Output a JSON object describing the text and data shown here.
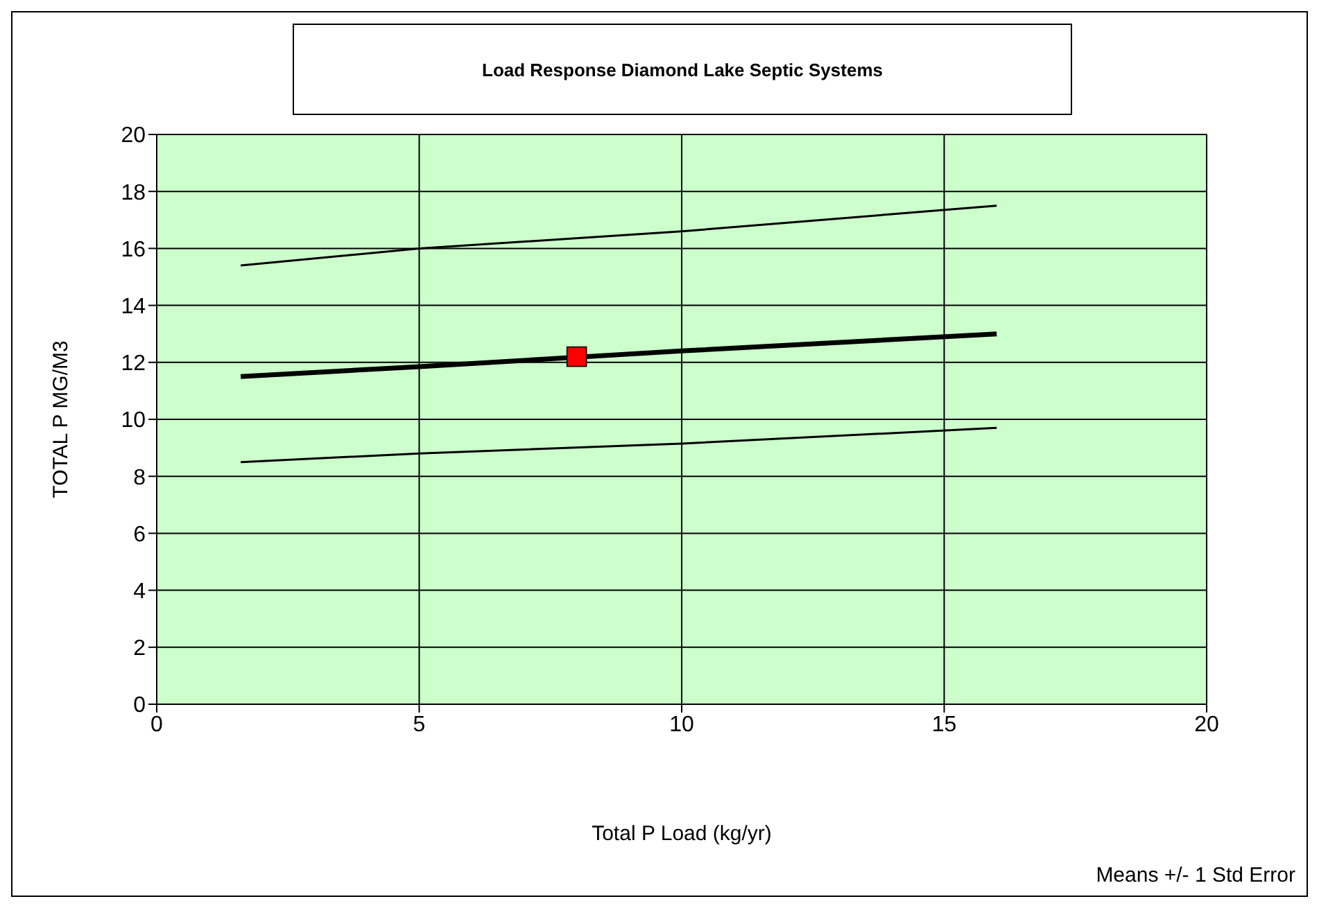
{
  "chart_data": {
    "type": "line",
    "title": "Load Response Diamond Lake Septic Systems",
    "xlabel": "Total P Load (kg/yr)",
    "ylabel": "TOTAL P    MG/M3",
    "annotations": [
      "Means +/- 1 Std Error"
    ],
    "xlim": [
      0,
      20
    ],
    "xticks": [
      0,
      5,
      10,
      15,
      20
    ],
    "ylim": [
      0,
      20
    ],
    "yticks": [
      0,
      2,
      4,
      6,
      8,
      10,
      12,
      14,
      16,
      18,
      20
    ],
    "grid": true,
    "line_style": "solid",
    "series": [
      {
        "color": "#000000",
        "marker": "none",
        "x": [
          1.6,
          5,
          10,
          16
        ],
        "values": [
          15.4,
          16.0,
          16.6,
          17.5
        ]
      },
      {
        "color": "#000000",
        "marker": "none",
        "x": [
          1.6,
          5,
          10,
          16
        ],
        "values": [
          11.5,
          11.85,
          12.4,
          13.0
        ]
      },
      {
        "color": "#000000",
        "marker": "none",
        "x": [
          1.6,
          5,
          10,
          16
        ],
        "values": [
          8.5,
          8.8,
          9.15,
          9.7
        ]
      },
      {
        "type": "scatter",
        "color": "#ff0000",
        "marker": "square",
        "x": [
          8
        ],
        "values": [
          12.2
        ]
      }
    ]
  }
}
